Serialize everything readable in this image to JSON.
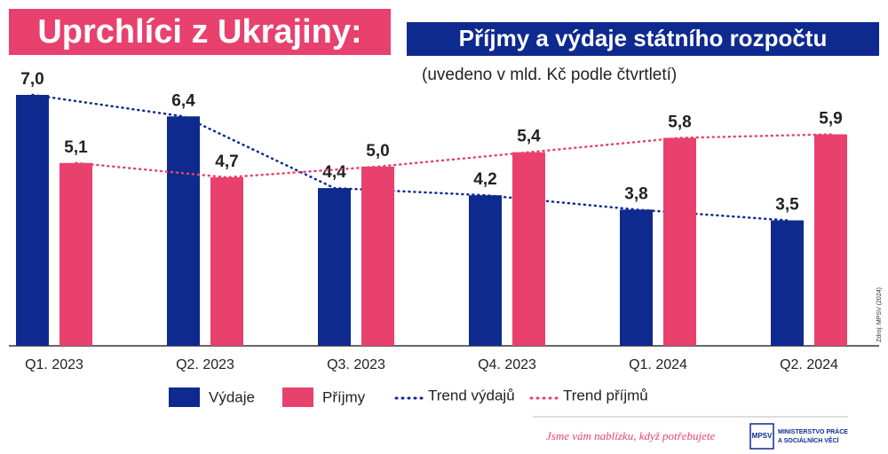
{
  "chart_data": {
    "type": "bar",
    "title": "Uprchlíci z Ukrajiny:",
    "subtitle": "Příjmy a výdaje státního rozpočtu",
    "note": "(uvedeno v mld. Kč podle čtvrtletí)",
    "categories": [
      "Q1. 2023",
      "Q2. 2023",
      "Q3. 2023",
      "Q4. 2023",
      "Q1. 2024",
      "Q2. 2024"
    ],
    "series": [
      {
        "name": "Výdaje",
        "color": "#0e2a8f",
        "values": [
          7.0,
          6.4,
          4.4,
          4.2,
          3.8,
          3.5
        ],
        "value_labels": [
          "7,0",
          "6,4",
          "4,4",
          "4,2",
          "3,8",
          "3,5"
        ],
        "trend": {
          "name": "Trend výdajů"
        }
      },
      {
        "name": "Příjmy",
        "color": "#e8416e",
        "values": [
          5.1,
          4.7,
          5.0,
          5.4,
          5.8,
          5.9
        ],
        "value_labels": [
          "5,1",
          "4,7",
          "5,0",
          "5,4",
          "5,8",
          "5,9"
        ],
        "trend": {
          "name": "Trend příjmů"
        }
      }
    ],
    "source": "Zdroj: MPSV (2024)",
    "footer": {
      "slogan": "Jsme vám nablízku, když potřebujete",
      "logo": "MPSV",
      "ministry": [
        "MINISTERSTVO PRÁCE",
        "A SOCIÁLNÍCH VĚCÍ"
      ]
    }
  }
}
